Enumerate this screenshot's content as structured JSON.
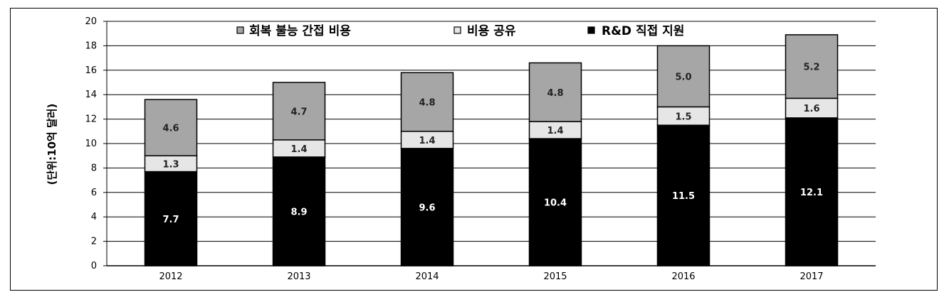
{
  "chart_data": {
    "type": "bar",
    "stacked": true,
    "categories": [
      "2012",
      "2013",
      "2014",
      "2015",
      "2016",
      "2017"
    ],
    "series": [
      {
        "name": "R&D 직접 지원",
        "color": "#000000",
        "values": [
          7.7,
          8.9,
          9.6,
          10.4,
          11.5,
          12.1
        ]
      },
      {
        "name": "비용 공유",
        "color": "#e6e6e6",
        "values": [
          1.3,
          1.4,
          1.4,
          1.4,
          1.5,
          1.6
        ]
      },
      {
        "name": "회복 불능 간접 비용",
        "color": "#a6a6a6",
        "values": [
          4.6,
          4.7,
          4.8,
          4.8,
          5.0,
          5.2
        ]
      }
    ],
    "legend_order": [
      "회복 불능 간접 비용",
      "비용 공유",
      "R&D 직접 지원"
    ],
    "legend_position": "top",
    "title": "",
    "xlabel": "",
    "ylabel": "(단위:10억 달러)",
    "ylim": [
      0,
      20
    ],
    "yticks": [
      0,
      2,
      4,
      6,
      8,
      10,
      12,
      14,
      16,
      18,
      20
    ],
    "grid": true
  }
}
